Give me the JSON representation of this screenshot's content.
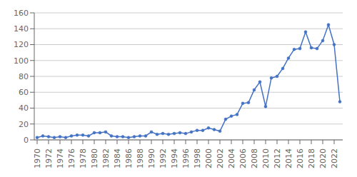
{
  "chart_data": {
    "type": "line",
    "x": [
      1970,
      1971,
      1972,
      1973,
      1974,
      1975,
      1976,
      1977,
      1978,
      1979,
      1980,
      1981,
      1982,
      1983,
      1984,
      1985,
      1986,
      1987,
      1988,
      1989,
      1990,
      1991,
      1992,
      1993,
      1994,
      1995,
      1996,
      1997,
      1998,
      1999,
      2000,
      2001,
      2002,
      2003,
      2004,
      2005,
      2006,
      2007,
      2008,
      2009,
      2010,
      2011,
      2012,
      2013,
      2014,
      2015,
      2016,
      2017,
      2018,
      2019,
      2020,
      2021,
      2022,
      2023
    ],
    "values": [
      3,
      5,
      4,
      3,
      4,
      3,
      5,
      6,
      6,
      5,
      9,
      9,
      10,
      5,
      4,
      4,
      3,
      4,
      5,
      5,
      10,
      7,
      8,
      7,
      8,
      9,
      8,
      10,
      12,
      12,
      15,
      13,
      11,
      26,
      30,
      32,
      46,
      47,
      63,
      73,
      42,
      78,
      80,
      90,
      103,
      114,
      115,
      136,
      116,
      115,
      125,
      145,
      120,
      48
    ],
    "color": "#4472C4",
    "marker": "o",
    "xlim": [
      1969.5,
      2023.5
    ],
    "xticks": [
      1970,
      1972,
      1974,
      1976,
      1978,
      1980,
      1982,
      1984,
      1986,
      1988,
      1990,
      1992,
      1994,
      1996,
      1998,
      2000,
      2002,
      2004,
      2006,
      2008,
      2010,
      2012,
      2014,
      2016,
      2018,
      2020,
      2022
    ],
    "ylim": [
      0,
      160
    ],
    "yticks": [
      0,
      20,
      40,
      60,
      80,
      100,
      120,
      140,
      160
    ],
    "grid": true
  }
}
